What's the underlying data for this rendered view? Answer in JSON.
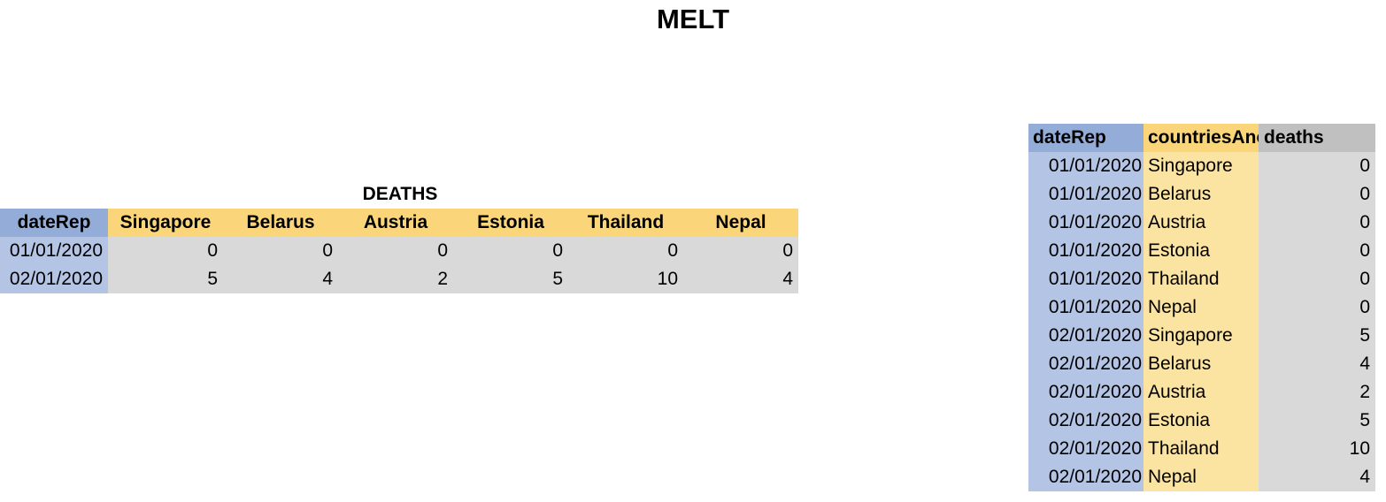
{
  "title": "MELT",
  "wide_table": {
    "caption": "DEATHS",
    "date_header": "dateRep",
    "countries": [
      "Singapore",
      "Belarus",
      "Austria",
      "Estonia",
      "Thailand",
      "Nepal"
    ],
    "rows": [
      {
        "date": "01/01/2020",
        "values": [
          "0",
          "0",
          "0",
          "0",
          "0",
          "0"
        ]
      },
      {
        "date": "02/01/2020",
        "values": [
          "5",
          "4",
          "2",
          "5",
          "10",
          "4"
        ]
      }
    ]
  },
  "long_table": {
    "headers": {
      "date": "dateRep",
      "country": "countriesAnc",
      "deaths": "deaths"
    },
    "rows": [
      {
        "date": "01/01/2020",
        "country": "Singapore",
        "deaths": "0"
      },
      {
        "date": "01/01/2020",
        "country": "Belarus",
        "deaths": "0"
      },
      {
        "date": "01/01/2020",
        "country": "Austria",
        "deaths": "0"
      },
      {
        "date": "01/01/2020",
        "country": "Estonia",
        "deaths": "0"
      },
      {
        "date": "01/01/2020",
        "country": "Thailand",
        "deaths": "0"
      },
      {
        "date": "01/01/2020",
        "country": "Nepal",
        "deaths": "0"
      },
      {
        "date": "02/01/2020",
        "country": "Singapore",
        "deaths": "5"
      },
      {
        "date": "02/01/2020",
        "country": "Belarus",
        "deaths": "4"
      },
      {
        "date": "02/01/2020",
        "country": "Austria",
        "deaths": "2"
      },
      {
        "date": "02/01/2020",
        "country": "Estonia",
        "deaths": "5"
      },
      {
        "date": "02/01/2020",
        "country": "Thailand",
        "deaths": "10"
      },
      {
        "date": "02/01/2020",
        "country": "Nepal",
        "deaths": "4"
      }
    ]
  },
  "colors": {
    "date_header": "#94add8",
    "date_cell": "#b4c4e5",
    "country_header": "#fad57a",
    "country_cell": "#fbe3a2",
    "value_cell": "#d9d9d9",
    "deaths_header": "#c0c0c0"
  }
}
